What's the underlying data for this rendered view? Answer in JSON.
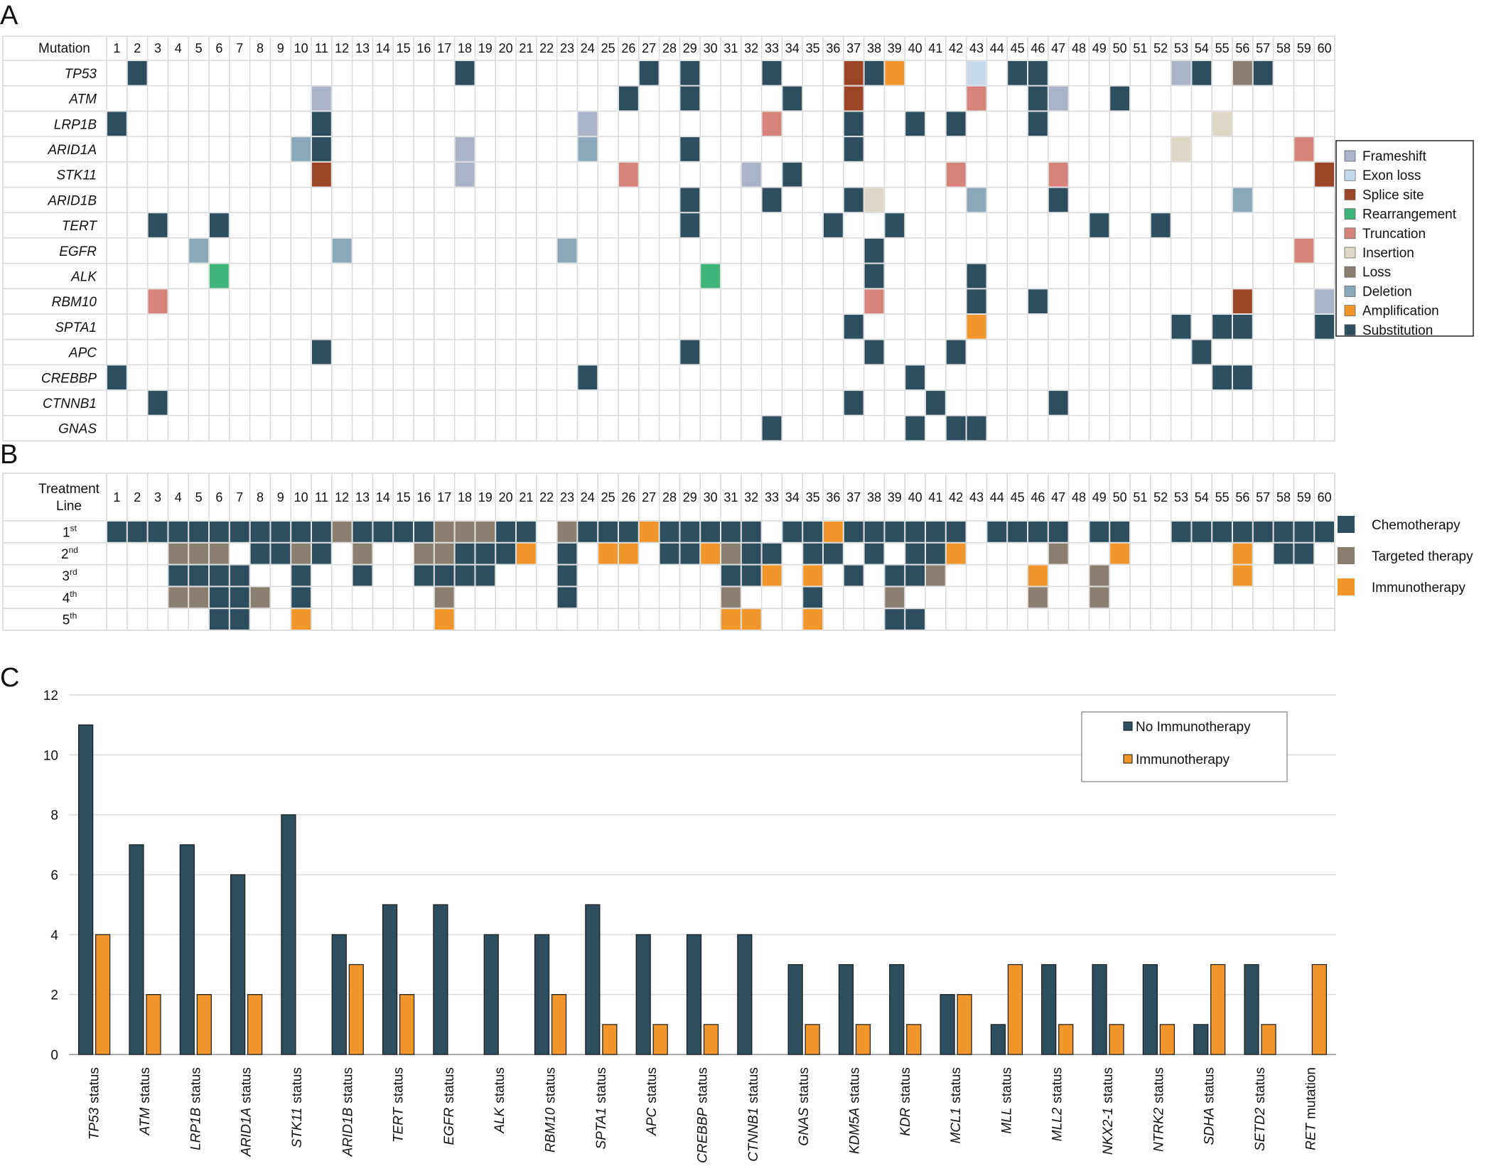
{
  "colors": {
    "Frameshift": "#aab4c6",
    "Exon loss": "#c6daea",
    "Splice site": "#9b4426",
    "Rearrangement": "#3fb57c",
    "Truncation": "#d6837a",
    "Insertion": "#ddd7c6",
    "Loss": "#8a7e70",
    "Deletion": "#8aa9b8",
    "Amplification": "#f0962a",
    "Substitution": "#2d4e5c",
    "Chemotherapy": "#2d4e5c",
    "Targeted therapy": "#8a7e70",
    "Immunotherapy": "#f0962a",
    "grid": "#d9d9d9"
  },
  "chart_data": [
    {
      "type": "heatmap",
      "panel_label": "A",
      "row_header": "Mutation",
      "columns": [
        "1",
        "2",
        "3",
        "4",
        "5",
        "6",
        "7",
        "8",
        "9",
        "10",
        "11",
        "12",
        "13",
        "14",
        "15",
        "16",
        "17",
        "18",
        "19",
        "20",
        "21",
        "22",
        "23",
        "24",
        "25",
        "26",
        "27",
        "28",
        "29",
        "30",
        "31",
        "32",
        "33",
        "34",
        "35",
        "36",
        "37",
        "38",
        "39",
        "40",
        "41",
        "42",
        "43",
        "44",
        "45",
        "46",
        "47",
        "48",
        "49",
        "50",
        "51",
        "52",
        "53",
        "54",
        "55",
        "56",
        "57",
        "58",
        "59",
        "60"
      ],
      "rows": [
        "TP53",
        "ATM",
        "LRP1B",
        "ARID1A",
        "STK11",
        "ARID1B",
        "TERT",
        "EGFR",
        "ALK",
        "RBM10",
        "SPTA1",
        "APC",
        "CREBBP",
        "CTNNB1",
        "GNAS"
      ],
      "legend": [
        "Frameshift",
        "Exon loss",
        "Splice site",
        "Rearrangement",
        "Truncation",
        "Insertion",
        "Loss",
        "Deletion",
        "Amplification",
        "Substitution"
      ],
      "cells": [
        {
          "row": "TP53",
          "col": 2,
          "type": "Substitution"
        },
        {
          "row": "TP53",
          "col": 18,
          "type": "Substitution"
        },
        {
          "row": "TP53",
          "col": 27,
          "type": "Substitution"
        },
        {
          "row": "TP53",
          "col": 29,
          "type": "Substitution"
        },
        {
          "row": "TP53",
          "col": 33,
          "type": "Substitution"
        },
        {
          "row": "TP53",
          "col": 37,
          "type": "Splice site"
        },
        {
          "row": "TP53",
          "col": 38,
          "type": "Substitution"
        },
        {
          "row": "TP53",
          "col": 39,
          "type": "Amplification"
        },
        {
          "row": "TP53",
          "col": 43,
          "type": "Exon loss"
        },
        {
          "row": "TP53",
          "col": 45,
          "type": "Substitution"
        },
        {
          "row": "TP53",
          "col": 46,
          "type": "Substitution"
        },
        {
          "row": "TP53",
          "col": 53,
          "type": "Frameshift"
        },
        {
          "row": "TP53",
          "col": 54,
          "type": "Substitution"
        },
        {
          "row": "TP53",
          "col": 56,
          "type": "Loss"
        },
        {
          "row": "TP53",
          "col": 57,
          "type": "Substitution"
        },
        {
          "row": "ATM",
          "col": 11,
          "type": "Frameshift"
        },
        {
          "row": "ATM",
          "col": 26,
          "type": "Substitution"
        },
        {
          "row": "ATM",
          "col": 29,
          "type": "Substitution"
        },
        {
          "row": "ATM",
          "col": 34,
          "type": "Substitution"
        },
        {
          "row": "ATM",
          "col": 37,
          "type": "Splice site"
        },
        {
          "row": "ATM",
          "col": 43,
          "type": "Truncation"
        },
        {
          "row": "ATM",
          "col": 46,
          "type": "Substitution"
        },
        {
          "row": "ATM",
          "col": 47,
          "type": "Frameshift"
        },
        {
          "row": "ATM",
          "col": 50,
          "type": "Substitution"
        },
        {
          "row": "LRP1B",
          "col": 1,
          "type": "Substitution"
        },
        {
          "row": "LRP1B",
          "col": 11,
          "type": "Substitution"
        },
        {
          "row": "LRP1B",
          "col": 24,
          "type": "Frameshift"
        },
        {
          "row": "LRP1B",
          "col": 33,
          "type": "Truncation"
        },
        {
          "row": "LRP1B",
          "col": 37,
          "type": "Substitution"
        },
        {
          "row": "LRP1B",
          "col": 40,
          "type": "Substitution"
        },
        {
          "row": "LRP1B",
          "col": 42,
          "type": "Substitution"
        },
        {
          "row": "LRP1B",
          "col": 46,
          "type": "Substitution"
        },
        {
          "row": "LRP1B",
          "col": 55,
          "type": "Insertion"
        },
        {
          "row": "ARID1A",
          "col": 10,
          "type": "Deletion"
        },
        {
          "row": "ARID1A",
          "col": 11,
          "type": "Substitution"
        },
        {
          "row": "ARID1A",
          "col": 18,
          "type": "Frameshift"
        },
        {
          "row": "ARID1A",
          "col": 24,
          "type": "Deletion"
        },
        {
          "row": "ARID1A",
          "col": 29,
          "type": "Substitution"
        },
        {
          "row": "ARID1A",
          "col": 37,
          "type": "Substitution"
        },
        {
          "row": "ARID1A",
          "col": 53,
          "type": "Insertion"
        },
        {
          "row": "ARID1A",
          "col": 59,
          "type": "Truncation"
        },
        {
          "row": "STK11",
          "col": 11,
          "type": "Splice site"
        },
        {
          "row": "STK11",
          "col": 18,
          "type": "Frameshift"
        },
        {
          "row": "STK11",
          "col": 26,
          "type": "Truncation"
        },
        {
          "row": "STK11",
          "col": 32,
          "type": "Frameshift"
        },
        {
          "row": "STK11",
          "col": 34,
          "type": "Substitution"
        },
        {
          "row": "STK11",
          "col": 42,
          "type": "Truncation"
        },
        {
          "row": "STK11",
          "col": 47,
          "type": "Truncation"
        },
        {
          "row": "STK11",
          "col": 60,
          "type": "Splice site"
        },
        {
          "row": "ARID1B",
          "col": 29,
          "type": "Substitution"
        },
        {
          "row": "ARID1B",
          "col": 33,
          "type": "Substitution"
        },
        {
          "row": "ARID1B",
          "col": 37,
          "type": "Substitution"
        },
        {
          "row": "ARID1B",
          "col": 38,
          "type": "Insertion"
        },
        {
          "row": "ARID1B",
          "col": 43,
          "type": "Deletion"
        },
        {
          "row": "ARID1B",
          "col": 47,
          "type": "Substitution"
        },
        {
          "row": "ARID1B",
          "col": 56,
          "type": "Deletion"
        },
        {
          "row": "TERT",
          "col": 3,
          "type": "Substitution"
        },
        {
          "row": "TERT",
          "col": 6,
          "type": "Substitution"
        },
        {
          "row": "TERT",
          "col": 29,
          "type": "Substitution"
        },
        {
          "row": "TERT",
          "col": 36,
          "type": "Substitution"
        },
        {
          "row": "TERT",
          "col": 39,
          "type": "Substitution"
        },
        {
          "row": "TERT",
          "col": 49,
          "type": "Substitution"
        },
        {
          "row": "TERT",
          "col": 52,
          "type": "Substitution"
        },
        {
          "row": "EGFR",
          "col": 5,
          "type": "Deletion"
        },
        {
          "row": "EGFR",
          "col": 12,
          "type": "Deletion"
        },
        {
          "row": "EGFR",
          "col": 23,
          "type": "Deletion"
        },
        {
          "row": "EGFR",
          "col": 38,
          "type": "Substitution"
        },
        {
          "row": "EGFR",
          "col": 59,
          "type": "Truncation"
        },
        {
          "row": "ALK",
          "col": 6,
          "type": "Rearrangement"
        },
        {
          "row": "ALK",
          "col": 30,
          "type": "Rearrangement"
        },
        {
          "row": "ALK",
          "col": 38,
          "type": "Substitution"
        },
        {
          "row": "ALK",
          "col": 43,
          "type": "Substitution"
        },
        {
          "row": "RBM10",
          "col": 3,
          "type": "Truncation"
        },
        {
          "row": "RBM10",
          "col": 38,
          "type": "Truncation"
        },
        {
          "row": "RBM10",
          "col": 43,
          "type": "Substitution"
        },
        {
          "row": "RBM10",
          "col": 46,
          "type": "Substitution"
        },
        {
          "row": "RBM10",
          "col": 56,
          "type": "Splice site"
        },
        {
          "row": "RBM10",
          "col": 60,
          "type": "Frameshift"
        },
        {
          "row": "SPTA1",
          "col": 37,
          "type": "Substitution"
        },
        {
          "row": "SPTA1",
          "col": 43,
          "type": "Amplification"
        },
        {
          "row": "SPTA1",
          "col": 53,
          "type": "Substitution"
        },
        {
          "row": "SPTA1",
          "col": 55,
          "type": "Substitution"
        },
        {
          "row": "SPTA1",
          "col": 56,
          "type": "Substitution"
        },
        {
          "row": "SPTA1",
          "col": 60,
          "type": "Substitution"
        },
        {
          "row": "APC",
          "col": 11,
          "type": "Substitution"
        },
        {
          "row": "APC",
          "col": 29,
          "type": "Substitution"
        },
        {
          "row": "APC",
          "col": 38,
          "type": "Substitution"
        },
        {
          "row": "APC",
          "col": 42,
          "type": "Substitution"
        },
        {
          "row": "APC",
          "col": 54,
          "type": "Substitution"
        },
        {
          "row": "CREBBP",
          "col": 1,
          "type": "Substitution"
        },
        {
          "row": "CREBBP",
          "col": 24,
          "type": "Substitution"
        },
        {
          "row": "CREBBP",
          "col": 40,
          "type": "Substitution"
        },
        {
          "row": "CREBBP",
          "col": 55,
          "type": "Substitution"
        },
        {
          "row": "CREBBP",
          "col": 56,
          "type": "Substitution"
        },
        {
          "row": "CTNNB1",
          "col": 3,
          "type": "Substitution"
        },
        {
          "row": "CTNNB1",
          "col": 37,
          "type": "Substitution"
        },
        {
          "row": "CTNNB1",
          "col": 41,
          "type": "Substitution"
        },
        {
          "row": "CTNNB1",
          "col": 47,
          "type": "Substitution"
        },
        {
          "row": "GNAS",
          "col": 33,
          "type": "Substitution"
        },
        {
          "row": "GNAS",
          "col": 40,
          "type": "Substitution"
        },
        {
          "row": "GNAS",
          "col": 42,
          "type": "Substitution"
        },
        {
          "row": "GNAS",
          "col": 43,
          "type": "Substitution"
        }
      ]
    },
    {
      "type": "heatmap",
      "panel_label": "B",
      "row_header": [
        "Treatment",
        "Line"
      ],
      "columns": [
        "1",
        "2",
        "3",
        "4",
        "5",
        "6",
        "7",
        "8",
        "9",
        "10",
        "11",
        "12",
        "13",
        "14",
        "15",
        "16",
        "17",
        "18",
        "19",
        "20",
        "21",
        "22",
        "23",
        "24",
        "25",
        "26",
        "27",
        "28",
        "29",
        "30",
        "31",
        "32",
        "33",
        "34",
        "35",
        "36",
        "37",
        "38",
        "39",
        "40",
        "41",
        "42",
        "43",
        "44",
        "45",
        "46",
        "47",
        "48",
        "49",
        "50",
        "51",
        "52",
        "53",
        "54",
        "55",
        "56",
        "57",
        "58",
        "59",
        "60"
      ],
      "rows": [
        {
          "base": "1",
          "sup": "st"
        },
        {
          "base": "2",
          "sup": "nd"
        },
        {
          "base": "3",
          "sup": "rd"
        },
        {
          "base": "4",
          "sup": "th"
        },
        {
          "base": "5",
          "sup": "th"
        }
      ],
      "legend": [
        "Chemotherapy",
        "Targeted therapy",
        "Immunotherapy"
      ],
      "codes": {
        "C": "Chemotherapy",
        "T": "Targeted therapy",
        "I": "Immunotherapy"
      },
      "grid": [
        "CCCCCCCCCCCTCCCCTTTCC.TCCCICCCCC.CCICCCCCC.CCCC.CC..CCCCCCCC",
        "...TTT.CCTC.T..TTCCCI.C.II.CCITCC.CC.C.CCI....T..I.....I.CC.",
        "...CCCC..C..C..CCCC...C.......CCI.I.C.CCT....I..T......I....",
        "...TTCCT.C......T.....C.......T...C...T......T..T...........",
        ".....CC..I......I.............II..I...CC...................."
      ]
    },
    {
      "type": "bar",
      "panel_label": "C",
      "categories": [
        {
          "gene": "TP53",
          "suffix": "status"
        },
        {
          "gene": "ATM",
          "suffix": "status"
        },
        {
          "gene": "LRP1B",
          "suffix": "status"
        },
        {
          "gene": "ARID1A",
          "suffix": "status"
        },
        {
          "gene": "STK11",
          "suffix": "status"
        },
        {
          "gene": "ARID1B",
          "suffix": "status"
        },
        {
          "gene": "TERT",
          "suffix": "status"
        },
        {
          "gene": "EGFR",
          "suffix": "status"
        },
        {
          "gene": "ALK",
          "suffix": "status"
        },
        {
          "gene": "RBM10",
          "suffix": "status"
        },
        {
          "gene": "SPTA1",
          "suffix": "status"
        },
        {
          "gene": "APC",
          "suffix": "status"
        },
        {
          "gene": "CREBBP",
          "suffix": "status"
        },
        {
          "gene": "CTNNB1",
          "suffix": "status"
        },
        {
          "gene": "GNAS",
          "suffix": "status"
        },
        {
          "gene": "KDM5A",
          "suffix": "status"
        },
        {
          "gene": "KDR",
          "suffix": "status"
        },
        {
          "gene": "MCL1",
          "suffix": "status"
        },
        {
          "gene": "MLL",
          "suffix": "status"
        },
        {
          "gene": "MLL2",
          "suffix": "status"
        },
        {
          "gene": "NKX2-1",
          "suffix": "status"
        },
        {
          "gene": "NTRK2",
          "suffix": "status"
        },
        {
          "gene": "SDHA",
          "suffix": "status"
        },
        {
          "gene": "SETD2",
          "suffix": "status"
        },
        {
          "gene": "RET",
          "suffix": "mutation"
        }
      ],
      "series": [
        {
          "name": "No Immunotherapy",
          "color": "#2d4e5c",
          "values": [
            11,
            7,
            7,
            6,
            8,
            4,
            5,
            5,
            4,
            4,
            5,
            4,
            4,
            4,
            3,
            3,
            3,
            2,
            1,
            3,
            3,
            3,
            1,
            3,
            0
          ]
        },
        {
          "name": "Immunotherapy",
          "color": "#f0962a",
          "values": [
            4,
            2,
            2,
            2,
            0,
            3,
            2,
            0,
            0,
            2,
            1,
            1,
            1,
            0,
            1,
            1,
            1,
            2,
            3,
            1,
            1,
            1,
            3,
            1,
            3
          ]
        }
      ],
      "ylim": [
        0,
        12
      ],
      "yticks": [
        0,
        2,
        4,
        6,
        8,
        10,
        12
      ],
      "grid": true,
      "legend_position": "top-right"
    }
  ]
}
